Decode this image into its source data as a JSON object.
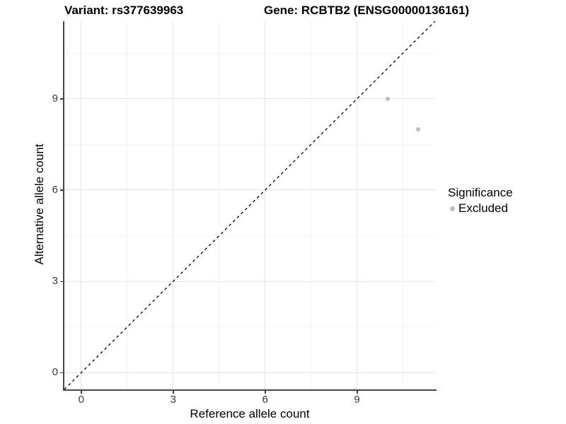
{
  "chart_data": {
    "type": "scatter",
    "title_variant": "Variant: rs377639963",
    "title_gene": "Gene: RCBTB2 (ENSG00000136161)",
    "xlabel": "Reference allele count",
    "ylabel": "Alternative allele count",
    "xlim": [
      -0.55,
      11.55
    ],
    "ylim": [
      -0.55,
      11.55
    ],
    "x_ticks": [
      0,
      3,
      6,
      9
    ],
    "y_ticks": [
      0,
      3,
      6,
      9
    ],
    "x_minor_ticks": [
      1.5,
      4.5,
      7.5,
      10.5
    ],
    "y_minor_ticks": [
      1.5,
      4.5,
      7.5,
      10.5
    ],
    "grid": {
      "on": true,
      "major_color": "#e4e4e4",
      "minor_color": "#f3f3f3"
    },
    "reference_line": {
      "kind": "identity",
      "style": "dashed",
      "color": "#111111",
      "dash": "4 4",
      "width": 1.4
    },
    "series": [
      {
        "name": "Excluded",
        "color": "#bebebe",
        "marker": "circle",
        "marker_size_px": 6,
        "points": [
          {
            "x": 10,
            "y": 9
          },
          {
            "x": 11,
            "y": 8
          }
        ]
      }
    ],
    "legend": {
      "title": "Significance",
      "position": "right",
      "items": [
        {
          "label": "Excluded",
          "color": "#bebebe"
        }
      ]
    }
  },
  "colors": {
    "background": "#ffffff",
    "axis_line": "#474747",
    "tick_label": "#383838",
    "title_text": "#000000",
    "excluded_point": "#bebebe"
  }
}
